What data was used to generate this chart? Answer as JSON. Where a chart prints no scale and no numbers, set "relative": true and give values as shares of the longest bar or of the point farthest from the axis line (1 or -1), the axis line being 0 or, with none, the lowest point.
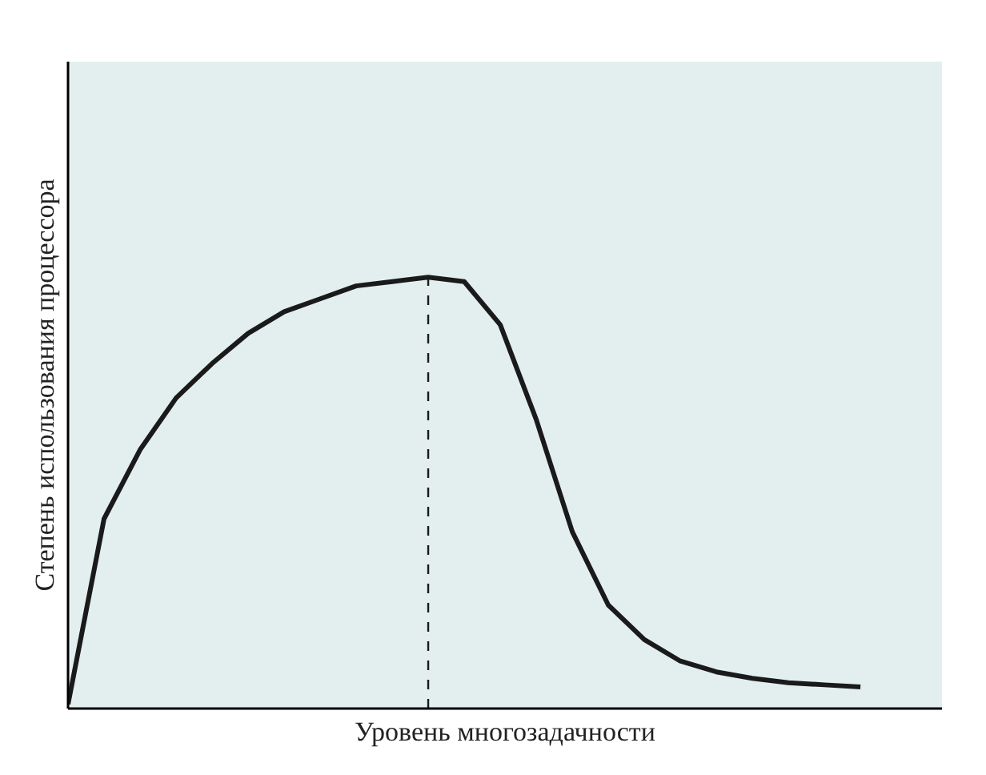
{
  "chart_data": {
    "type": "line",
    "relative": true,
    "xlabel": "Уровень многозадачности",
    "ylabel": "Степень использования процессора",
    "categories": [
      null,
      null,
      null,
      null,
      null,
      null,
      null,
      null,
      null,
      null,
      null,
      null,
      null,
      null,
      null,
      null,
      null,
      null,
      null,
      null,
      null,
      null,
      null,
      null,
      null
    ],
    "series": [
      {
        "color": "#1a1a1a",
        "values": [
          0.01,
          0.44,
          0.6,
          0.72,
          0.8,
          0.87,
          0.92,
          0.95,
          0.98,
          0.99,
          1.0,
          0.99,
          0.89,
          0.67,
          0.41,
          0.24,
          0.16,
          0.11,
          0.085,
          0.07,
          0.06,
          0.055,
          0.05,
          null,
          null
        ]
      }
    ],
    "ref_lines": [
      {
        "axis": "x",
        "line_style": "dashed",
        "color": "#1a1a1a"
      }
    ],
    "marker": "none",
    "line_style": "solid"
  }
}
